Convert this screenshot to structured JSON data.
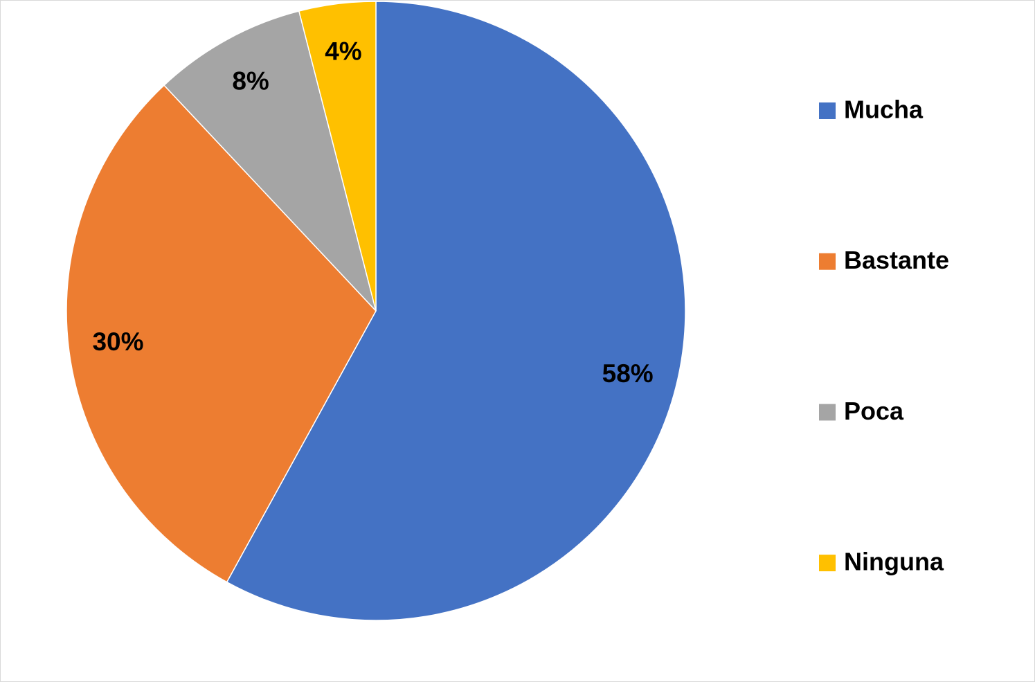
{
  "chart_data": {
    "type": "pie",
    "categories": [
      "Mucha",
      "Bastante",
      "Poca",
      "Ninguna"
    ],
    "values": [
      58,
      30,
      8,
      4
    ],
    "value_labels": [
      "58%",
      "30%",
      "8%",
      "4%"
    ],
    "colors": [
      "#4472c4",
      "#ed7d31",
      "#a5a5a5",
      "#ffc000"
    ],
    "legend": "right"
  }
}
